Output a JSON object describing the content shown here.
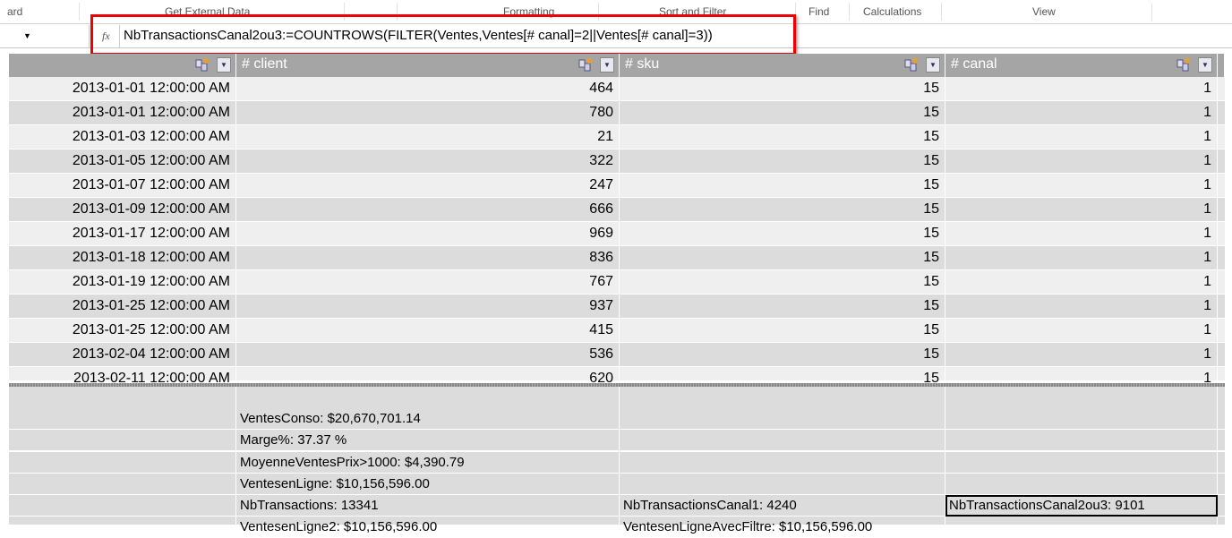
{
  "ribbon": {
    "groups": [
      "ard",
      "Get External Data",
      "Formatting",
      "Sort and Filter",
      "Find",
      "Calculations",
      "View"
    ]
  },
  "formula_bar": {
    "name_box": "",
    "formula": "NbTransactionsCanal2ou3:=COUNTROWS(FILTER(Ventes,Ventes[# canal]=2||Ventes[# canal]=3))",
    "fx_icon": "fx-icon"
  },
  "table": {
    "headers": [
      "",
      "# client",
      "# sku",
      "# canal"
    ],
    "rows": [
      [
        "2013-01-01 12:00:00 AM",
        "464",
        "15",
        "1"
      ],
      [
        "2013-01-01 12:00:00 AM",
        "780",
        "15",
        "1"
      ],
      [
        "2013-01-03 12:00:00 AM",
        "21",
        "15",
        "1"
      ],
      [
        "2013-01-05 12:00:00 AM",
        "322",
        "15",
        "1"
      ],
      [
        "2013-01-07 12:00:00 AM",
        "247",
        "15",
        "1"
      ],
      [
        "2013-01-09 12:00:00 AM",
        "666",
        "15",
        "1"
      ],
      [
        "2013-01-17 12:00:00 AM",
        "969",
        "15",
        "1"
      ],
      [
        "2013-01-18 12:00:00 AM",
        "836",
        "15",
        "1"
      ],
      [
        "2013-01-19 12:00:00 AM",
        "767",
        "15",
        "1"
      ],
      [
        "2013-01-25 12:00:00 AM",
        "937",
        "15",
        "1"
      ],
      [
        "2013-01-25 12:00:00 AM",
        "415",
        "15",
        "1"
      ],
      [
        "2013-02-04 12:00:00 AM",
        "536",
        "15",
        "1"
      ],
      [
        "2013-02-11 12:00:00 AM",
        "620",
        "15",
        "1"
      ]
    ]
  },
  "measures": {
    "rows": [
      [
        "",
        "",
        ""
      ],
      [
        "VentesConso: $20,670,701.14",
        "",
        ""
      ],
      [
        "Marge%: 37.37 %",
        "",
        ""
      ],
      [
        "MoyenneVentesPrix>1000: $4,390.79",
        "",
        ""
      ],
      [
        "VentesenLigne: $10,156,596.00",
        "",
        ""
      ],
      [
        "NbTransactions: 13341",
        "NbTransactionsCanal1: 4240",
        "NbTransactionsCanal2ou3: 9101"
      ],
      [
        "VentesenLigne2: $10,156,596.00",
        "VentesenLigneAvecFiltre: $10,156,596.00",
        ""
      ]
    ],
    "selected": "NbTransactionsCanal2ou3: 9101"
  },
  "colors": {
    "highlight": "#e00000",
    "header": "#a5a5a5"
  }
}
